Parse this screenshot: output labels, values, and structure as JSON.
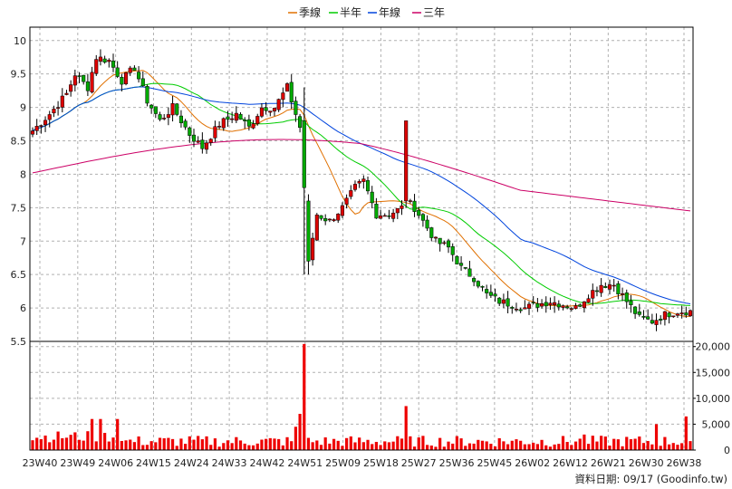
{
  "chart_data": {
    "type": "candlestick",
    "legend": [
      {
        "name": "季線",
        "color": "#e07000"
      },
      {
        "name": "半年",
        "color": "#00cc00"
      },
      {
        "name": "年線",
        "color": "#0044dd"
      },
      {
        "name": "三年",
        "color": "#cc0066"
      }
    ],
    "legend_placement": "top-center",
    "grid": true,
    "price_axis": {
      "ticks": [
        "10",
        "9.5",
        "9",
        "8.5",
        "8",
        "7.5",
        "7",
        "6.5",
        "6",
        "5.5"
      ],
      "range": [
        5.5,
        10.2
      ]
    },
    "volume_axis": {
      "ticks": [
        "20,000",
        "15,000",
        "10,000",
        "5,000",
        "0"
      ],
      "range": [
        0,
        21000
      ]
    },
    "x_ticks": [
      "23W40",
      "23W49",
      "24W06",
      "24W15",
      "24W24",
      "24W33",
      "24W42",
      "24W51",
      "25W09",
      "25W18",
      "25W27",
      "25W36",
      "25W45",
      "26W02",
      "26W12",
      "26W21",
      "26W30",
      "26W38"
    ],
    "footer": "資料日期: 09/17  (Goodinfo.tw)",
    "colors": {
      "up": "#dd0000",
      "down": "#00aa00",
      "volume": "#ee0000",
      "grid": "#b0b0b0",
      "axis": "#000000"
    },
    "weeks": 156
  }
}
